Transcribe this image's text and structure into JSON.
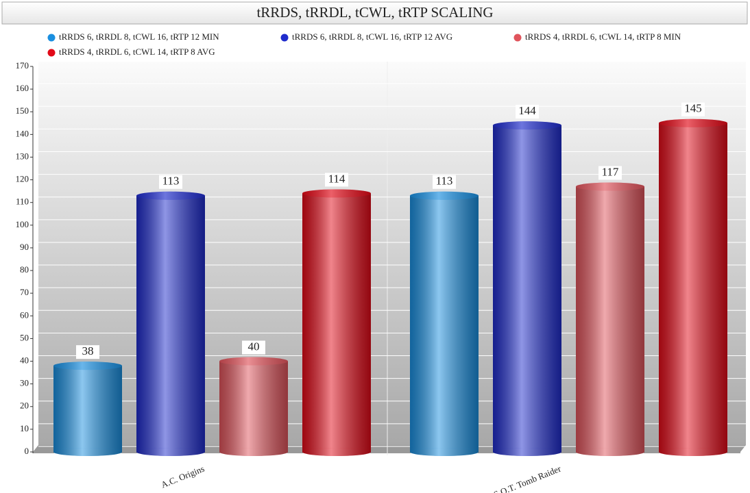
{
  "chart_data": {
    "type": "bar",
    "title": "tRRDS, tRRDL, tCWL, tRTP SCALING",
    "categories": [
      "A.C. Origins",
      "S.O.T. Tomb Raider"
    ],
    "series": [
      {
        "name": "tRRDS 6, tRRDL 8, tCWL 16, tRTP 12 MIN",
        "color": "#1a8fe0",
        "values": [
          38,
          113
        ]
      },
      {
        "name": "tRRDS 6, tRRDL 8, tCWL 16, tRTP 12 AVG",
        "color": "#1f2ccc",
        "values": [
          113,
          144
        ]
      },
      {
        "name": "tRRDS 4, tRRDL 6, tCWL 14, tRTP 8 MIN",
        "color": "#e0545c",
        "values": [
          40,
          117
        ]
      },
      {
        "name": "tRRDS 4, tRRDL 6, tCWL 14, tRTP 8 AVG",
        "color": "#e20a18",
        "values": [
          114,
          145
        ]
      }
    ],
    "ylim": [
      0,
      170
    ],
    "yticks": [
      0,
      10,
      20,
      30,
      40,
      50,
      60,
      70,
      80,
      90,
      100,
      110,
      120,
      130,
      140,
      150,
      160,
      170
    ],
    "grid": true,
    "legend": "top"
  }
}
